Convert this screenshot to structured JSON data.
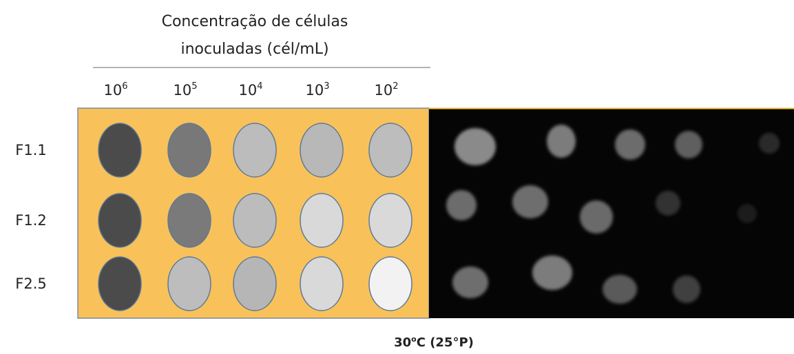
{
  "header": {
    "title_lines": [
      "Concentração de células",
      "inoculadas (cél/mL)"
    ],
    "columns": [
      {
        "base": "10",
        "exp": "6"
      },
      {
        "base": "10",
        "exp": "5"
      },
      {
        "base": "10",
        "exp": "4"
      },
      {
        "base": "10",
        "exp": "3"
      },
      {
        "base": "10",
        "exp": "2"
      }
    ]
  },
  "rows": [
    {
      "label": "F1.1",
      "spot_colors": [
        "#4b4b4b",
        "#787878",
        "#bcbcbc",
        "#b8b8b8",
        "#bdbdbd"
      ]
    },
    {
      "label": "F1.2",
      "spot_colors": [
        "#4b4b4b",
        "#7a7a7a",
        "#bcbcbc",
        "#d9d9d9",
        "#d9d9d9"
      ]
    },
    {
      "label": "F2.5",
      "spot_colors": [
        "#4b4b4b",
        "#bdbdbd",
        "#b6b6b6",
        "#d9d9d9",
        "#f2f2f2"
      ]
    }
  ],
  "footer": {
    "main": "30",
    "sup": "o",
    "rest": "C (25°P)"
  }
}
